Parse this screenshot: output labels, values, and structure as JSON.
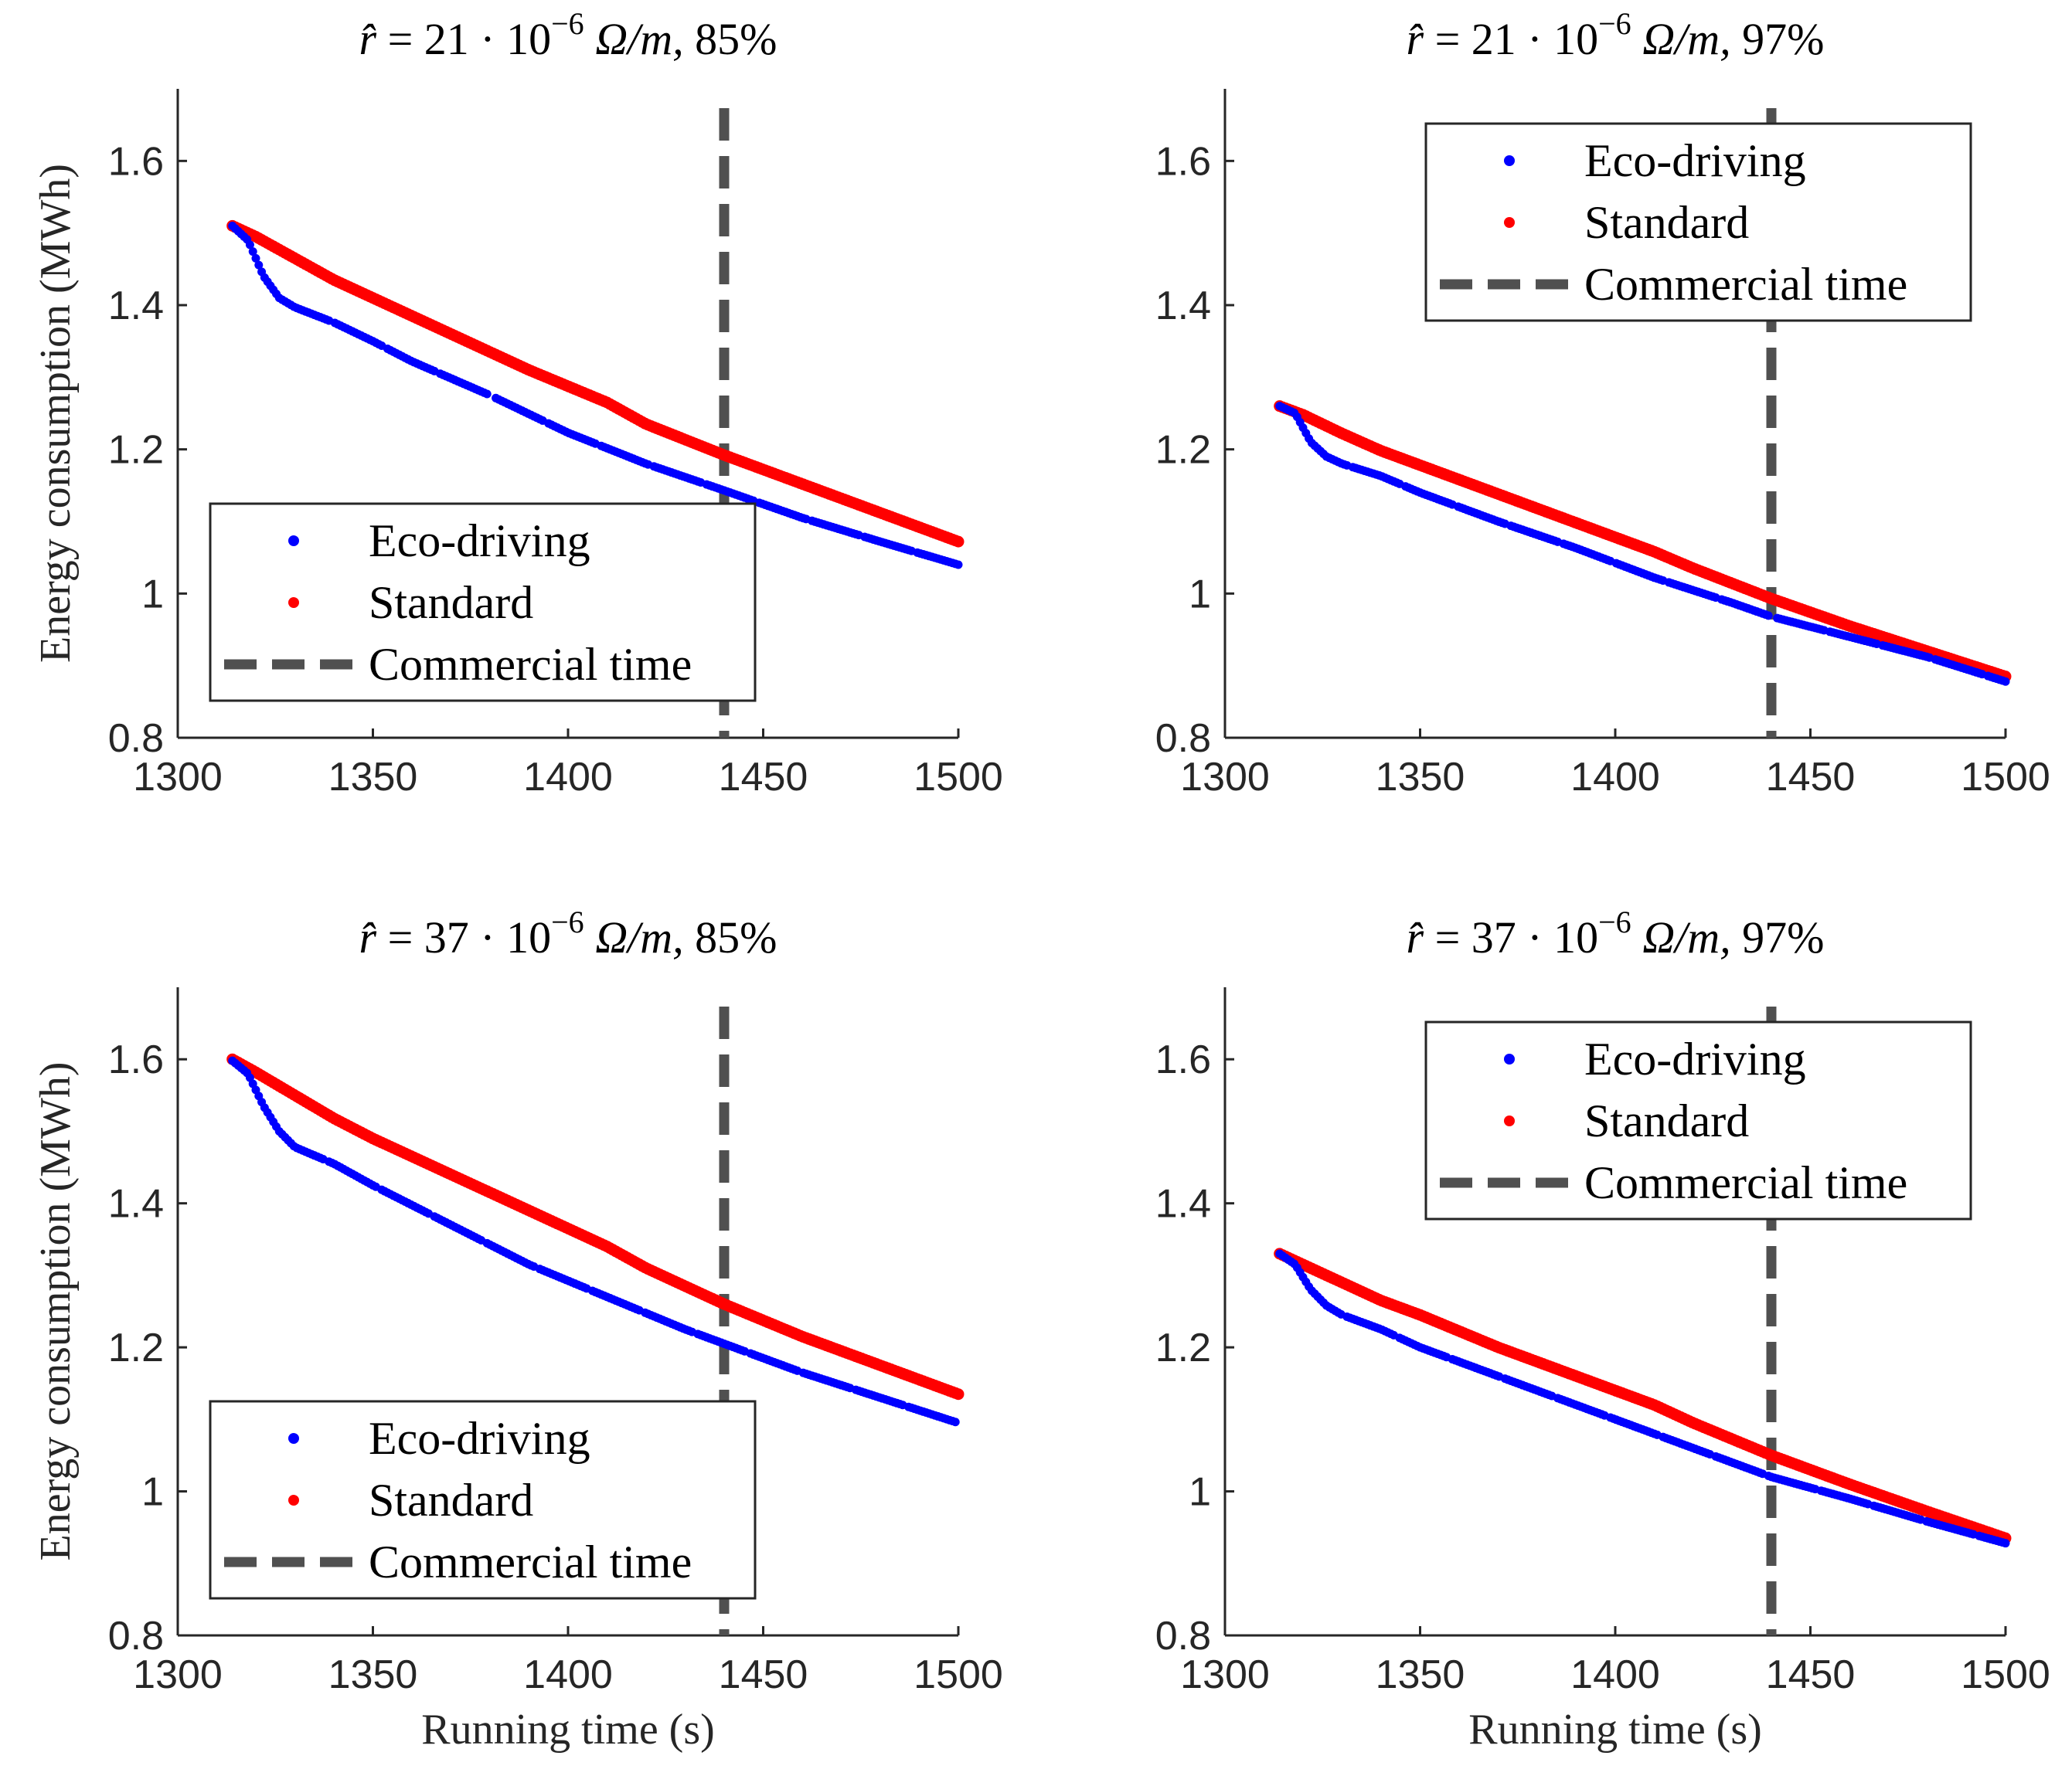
{
  "chart_data": [
    {
      "type": "scatter",
      "title": "r̂ = 21 · 10⁻⁶ Ω/m,  85%",
      "title_parts": {
        "lhs": "r̂",
        "coef": "21",
        "exp": "−6",
        "unit": "Ω/m,",
        "pct": "85%"
      },
      "xlabel": "",
      "ylabel": "Energy consumption (MWh)",
      "xlim": [
        1300,
        1500
      ],
      "ylim": [
        0.8,
        1.7
      ],
      "xticks": [
        "1300",
        "1350",
        "1400",
        "1450",
        "1500"
      ],
      "yticks": [
        "0.8",
        "1",
        "1.2",
        "1.4",
        "1.6"
      ],
      "commercial_time": 1440,
      "legend_position": "lower-left",
      "series": [
        {
          "name": "Eco-driving",
          "color": "#0000ff",
          "points": [
            [
              1314,
              1.51
            ],
            [
              1318,
              1.49
            ],
            [
              1322,
              1.44
            ],
            [
              1326,
              1.41
            ],
            [
              1330,
              1.397
            ],
            [
              1340,
              1.376
            ],
            [
              1350,
              1.35
            ],
            [
              1360,
              1.322
            ],
            [
              1380,
              1.275
            ],
            [
              1400,
              1.223
            ],
            [
              1420,
              1.18
            ],
            [
              1440,
              1.143
            ],
            [
              1460,
              1.105
            ],
            [
              1480,
              1.072
            ],
            [
              1500,
              1.04
            ]
          ]
        },
        {
          "name": "Standard",
          "color": "#ff0000",
          "points": [
            [
              1314,
              1.51
            ],
            [
              1320,
              1.495
            ],
            [
              1330,
              1.465
            ],
            [
              1340,
              1.435
            ],
            [
              1350,
              1.41
            ],
            [
              1370,
              1.36
            ],
            [
              1390,
              1.31
            ],
            [
              1410,
              1.265
            ],
            [
              1420,
              1.235
            ],
            [
              1440,
              1.192
            ],
            [
              1460,
              1.152
            ],
            [
              1480,
              1.112
            ],
            [
              1500,
              1.072
            ]
          ]
        }
      ],
      "legend": {
        "eco": "Eco-driving",
        "std": "Standard",
        "commercial": "Commercial time"
      }
    },
    {
      "type": "scatter",
      "title": "r̂ = 21 · 10⁻⁶ Ω/m,  97%",
      "title_parts": {
        "lhs": "r̂",
        "coef": "21",
        "exp": "−6",
        "unit": "Ω/m,",
        "pct": "97%"
      },
      "xlabel": "",
      "ylabel": "",
      "xlim": [
        1300,
        1500
      ],
      "ylim": [
        0.8,
        1.7
      ],
      "xticks": [
        "1300",
        "1350",
        "1400",
        "1450",
        "1500"
      ],
      "yticks": [
        "0.8",
        "1",
        "1.2",
        "1.4",
        "1.6"
      ],
      "commercial_time": 1440,
      "legend_position": "upper-right",
      "series": [
        {
          "name": "Eco-driving",
          "color": "#0000ff",
          "points": [
            [
              1314,
              1.26
            ],
            [
              1318,
              1.25
            ],
            [
              1322,
              1.21
            ],
            [
              1326,
              1.19
            ],
            [
              1330,
              1.18
            ],
            [
              1340,
              1.163
            ],
            [
              1350,
              1.14
            ],
            [
              1370,
              1.1
            ],
            [
              1390,
              1.063
            ],
            [
              1410,
              1.022
            ],
            [
              1430,
              0.987
            ],
            [
              1440,
              0.968
            ],
            [
              1460,
              0.94
            ],
            [
              1480,
              0.912
            ],
            [
              1500,
              0.878
            ]
          ]
        },
        {
          "name": "Standard",
          "color": "#ff0000",
          "points": [
            [
              1314,
              1.26
            ],
            [
              1320,
              1.248
            ],
            [
              1330,
              1.222
            ],
            [
              1340,
              1.198
            ],
            [
              1350,
              1.178
            ],
            [
              1370,
              1.138
            ],
            [
              1390,
              1.098
            ],
            [
              1410,
              1.058
            ],
            [
              1420,
              1.035
            ],
            [
              1440,
              0.993
            ],
            [
              1460,
              0.955
            ],
            [
              1480,
              0.92
            ],
            [
              1500,
              0.885
            ]
          ]
        }
      ],
      "legend": {
        "eco": "Eco-driving",
        "std": "Standard",
        "commercial": "Commercial time"
      }
    },
    {
      "type": "scatter",
      "title": "r̂ = 37 · 10⁻⁶ Ω/m,  85%",
      "title_parts": {
        "lhs": "r̂",
        "coef": "37",
        "exp": "−6",
        "unit": "Ω/m,",
        "pct": "85%"
      },
      "xlabel": "Running time (s)",
      "ylabel": "Energy consumption (MWh)",
      "xlim": [
        1300,
        1500
      ],
      "ylim": [
        0.8,
        1.7
      ],
      "xticks": [
        "1300",
        "1350",
        "1400",
        "1450",
        "1500"
      ],
      "yticks": [
        "0.8",
        "1",
        "1.2",
        "1.4",
        "1.6"
      ],
      "commercial_time": 1440,
      "legend_position": "lower-left",
      "series": [
        {
          "name": "Eco-driving",
          "color": "#0000ff",
          "points": [
            [
              1314,
              1.598
            ],
            [
              1318,
              1.58
            ],
            [
              1322,
              1.535
            ],
            [
              1326,
              1.5
            ],
            [
              1330,
              1.478
            ],
            [
              1340,
              1.455
            ],
            [
              1350,
              1.425
            ],
            [
              1370,
              1.37
            ],
            [
              1390,
              1.315
            ],
            [
              1410,
              1.27
            ],
            [
              1430,
              1.225
            ],
            [
              1440,
              1.205
            ],
            [
              1460,
              1.165
            ],
            [
              1480,
              1.13
            ],
            [
              1500,
              1.095
            ]
          ]
        },
        {
          "name": "Standard",
          "color": "#ff0000",
          "points": [
            [
              1314,
              1.6
            ],
            [
              1320,
              1.582
            ],
            [
              1330,
              1.55
            ],
            [
              1340,
              1.518
            ],
            [
              1350,
              1.49
            ],
            [
              1370,
              1.44
            ],
            [
              1390,
              1.39
            ],
            [
              1410,
              1.34
            ],
            [
              1420,
              1.31
            ],
            [
              1440,
              1.26
            ],
            [
              1460,
              1.215
            ],
            [
              1480,
              1.175
            ],
            [
              1500,
              1.135
            ]
          ]
        }
      ],
      "legend": {
        "eco": "Eco-driving",
        "std": "Standard",
        "commercial": "Commercial time"
      }
    },
    {
      "type": "scatter",
      "title": "r̂ = 37 · 10⁻⁶ Ω/m,  97%",
      "title_parts": {
        "lhs": "r̂",
        "coef": "37",
        "exp": "−6",
        "unit": "Ω/m,",
        "pct": "97%"
      },
      "xlabel": "Running time (s)",
      "ylabel": "",
      "xlim": [
        1300,
        1500
      ],
      "ylim": [
        0.8,
        1.7
      ],
      "xticks": [
        "1300",
        "1350",
        "1400",
        "1450",
        "1500"
      ],
      "yticks": [
        "0.8",
        "1",
        "1.2",
        "1.4",
        "1.6"
      ],
      "commercial_time": 1440,
      "legend_position": "upper-right",
      "series": [
        {
          "name": "Eco-driving",
          "color": "#0000ff",
          "points": [
            [
              1314,
              1.33
            ],
            [
              1318,
              1.315
            ],
            [
              1322,
              1.28
            ],
            [
              1326,
              1.258
            ],
            [
              1330,
              1.245
            ],
            [
              1340,
              1.225
            ],
            [
              1350,
              1.2
            ],
            [
              1370,
              1.16
            ],
            [
              1390,
              1.12
            ],
            [
              1410,
              1.08
            ],
            [
              1430,
              1.04
            ],
            [
              1440,
              1.02
            ],
            [
              1460,
              0.99
            ],
            [
              1480,
              0.958
            ],
            [
              1500,
              0.928
            ]
          ]
        },
        {
          "name": "Standard",
          "color": "#ff0000",
          "points": [
            [
              1314,
              1.33
            ],
            [
              1320,
              1.315
            ],
            [
              1330,
              1.29
            ],
            [
              1340,
              1.265
            ],
            [
              1350,
              1.245
            ],
            [
              1370,
              1.2
            ],
            [
              1390,
              1.16
            ],
            [
              1410,
              1.12
            ],
            [
              1420,
              1.095
            ],
            [
              1440,
              1.05
            ],
            [
              1460,
              1.01
            ],
            [
              1480,
              0.972
            ],
            [
              1500,
              0.935
            ]
          ]
        }
      ],
      "legend": {
        "eco": "Eco-driving",
        "std": "Standard",
        "commercial": "Commercial time"
      }
    }
  ],
  "colors": {
    "eco": "#0000ff",
    "standard": "#ff0000",
    "commercial": "#505050",
    "axis": "#262626"
  }
}
